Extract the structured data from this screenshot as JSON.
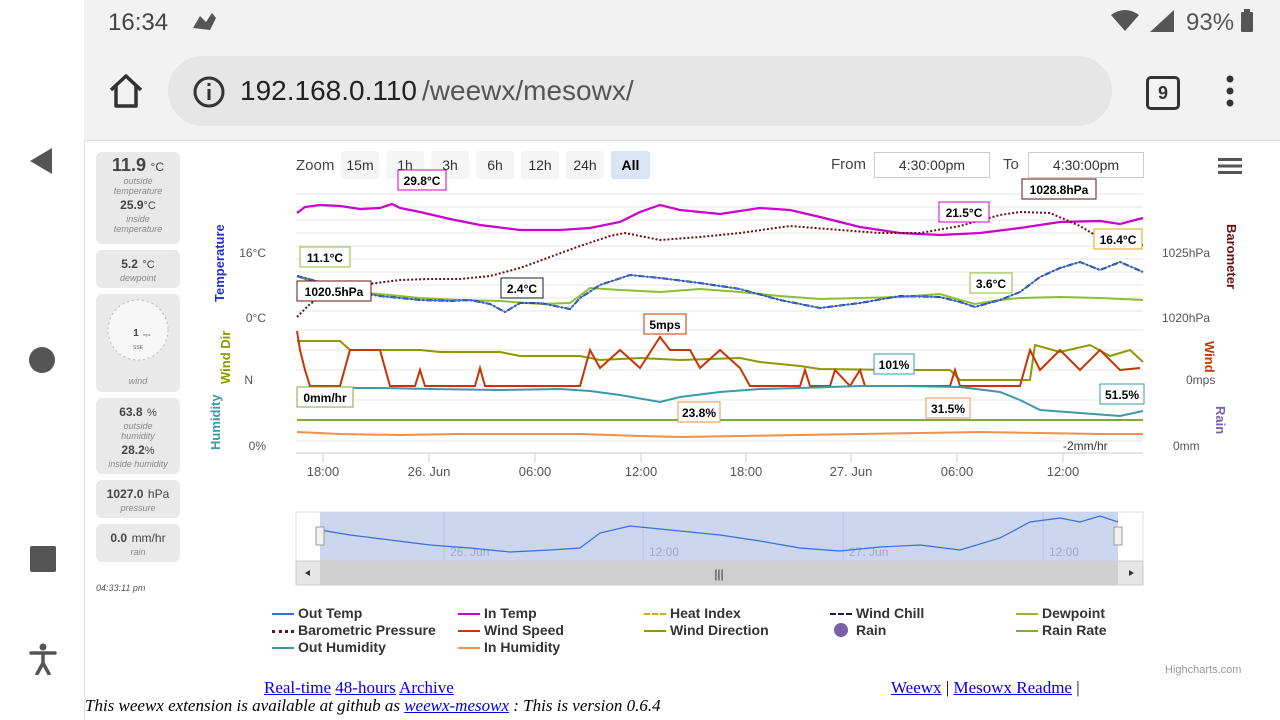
{
  "status": {
    "time": "16:34",
    "battery": "93%"
  },
  "browser": {
    "url_host": "192.168.0.110",
    "url_path": "/weewx/mesowx/",
    "tab_count": "9"
  },
  "sidebar": {
    "outside_temp": "11.9",
    "outside_temp_unit": "°C",
    "outside_temp_label": "outside temperature",
    "inside_temp": "25.9",
    "inside_temp_unit": "°C",
    "inside_temp_label": "inside temperature",
    "dewpoint": "5.2",
    "dewpoint_unit": "°C",
    "dewpoint_label": "dewpoint",
    "wind_speed": "1",
    "wind_unit": "mps",
    "wind_dir": "SSE",
    "wind_label": "wind",
    "outside_humidity": "63.8",
    "outside_humidity_unit": "%",
    "outside_humidity_label": "outside humidity",
    "inside_humidity": "28.2",
    "inside_humidity_unit": "%",
    "inside_humidity_label": "inside humidity",
    "pressure": "1027.0",
    "pressure_unit": "hPa",
    "pressure_label": "pressure",
    "rain": "0.0",
    "rain_unit": "mm/hr",
    "rain_label": "rain",
    "updated": "04:33:11 pm"
  },
  "zoom": {
    "label": "Zoom",
    "buttons": [
      "15m",
      "1h",
      "3h",
      "6h",
      "12h",
      "24h",
      "All"
    ],
    "active": "All"
  },
  "range": {
    "from_label": "From",
    "from_value": "4:30:00pm",
    "to_label": "To",
    "to_value": "4:30:00pm"
  },
  "axes": {
    "temperature": "Temperature",
    "wind_dir": "Wind Dir",
    "humidity": "Humidity",
    "barometer": "Barometer",
    "wind": "Wind",
    "rain": "Rain",
    "left_ticks": [
      "16°C",
      "0°C",
      "N",
      "0%"
    ],
    "right_ticks": [
      "1025hPa",
      "1020hPa",
      "0mps",
      "0mm"
    ],
    "x_ticks": [
      "18:00",
      "26. Jun",
      "06:00",
      "12:00",
      "18:00",
      "27. Jun",
      "06:00",
      "12:00"
    ],
    "nav_ticks": [
      "26. Jun",
      "12:00",
      "27. Jun",
      "12:00"
    ]
  },
  "annotations": {
    "in_temp_max": "29.8°C",
    "out_temp_start": "11.1°C",
    "baro_start": "1020.5hPa",
    "out_temp_min": "2.4°C",
    "wind_max": "5mps",
    "in_temp_min": "21.5°C",
    "baro_max": "1028.8hPa",
    "out_temp_end": "16.4°C",
    "dewpoint_min": "3.6°C",
    "rain_rate": "0mm/hr",
    "humidity_max": "101%",
    "in_humidity_min": "23.8%",
    "in_humidity_min2": "31.5%",
    "humidity_end": "51.5%",
    "rain_low": "-2mm/hr"
  },
  "legend": [
    {
      "name": "Out Temp",
      "color": "#3a6fd8",
      "style": "solid"
    },
    {
      "name": "In Temp",
      "color": "#cc00cc",
      "style": "solid"
    },
    {
      "name": "Heat Index",
      "color": "#e8a000",
      "style": "dashdot"
    },
    {
      "name": "Wind Chill",
      "color": "#0a1f4a",
      "style": "dashdot"
    },
    {
      "name": "Dewpoint",
      "color": "#8fbf30",
      "style": "solid"
    },
    {
      "name": "Barometric Pressure",
      "color": "#6b1010",
      "style": "dotted"
    },
    {
      "name": "Wind Speed",
      "color": "#cc3300",
      "style": "solid"
    },
    {
      "name": "Wind Direction",
      "color": "#8c9a00",
      "style": "solid"
    },
    {
      "name": "Rain",
      "color": "#7b61a8",
      "style": "dot"
    },
    {
      "name": "Rain Rate",
      "color": "#7cab3c",
      "style": "solid"
    },
    {
      "name": "Out Humidity",
      "color": "#3a9aa8",
      "style": "solid"
    },
    {
      "name": "In Humidity",
      "color": "#f0904a",
      "style": "solid"
    }
  ],
  "credits": "Highcharts.com",
  "footer": {
    "realtime": "Real-time",
    "hours48": "48-hours",
    "archive": "Archive",
    "weewx": "Weewx",
    "sep": "|",
    "readme": "Mesowx Readme",
    "sep2": "|",
    "line2_a": "This weewx extension is available at github as",
    "line2_link": "weewx-mesowx",
    "line2_b": ": This is version 0.6.4"
  }
}
